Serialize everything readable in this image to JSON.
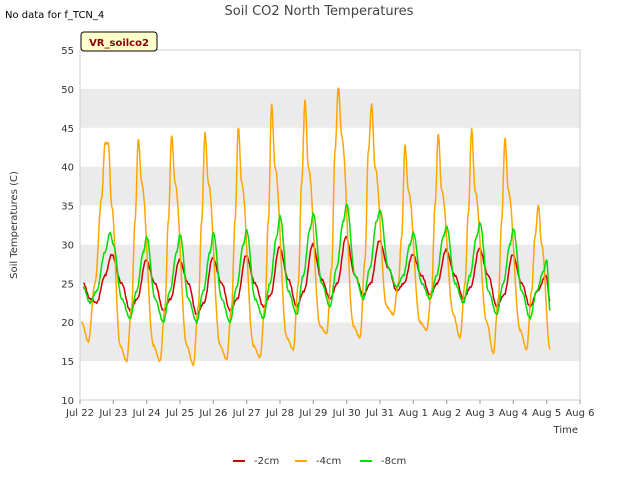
{
  "no_data_note": "No data for f_TCN_4",
  "badge": "VR_soilco2",
  "chart_data": {
    "type": "line",
    "title": "Soil CO2 North Temperatures",
    "xlabel": "Time",
    "ylabel": "Soil Temperatures (C)",
    "ylim": [
      10,
      55
    ],
    "yticks": [
      10,
      15,
      20,
      25,
      30,
      35,
      40,
      45,
      50,
      55
    ],
    "xlim": [
      0,
      15
    ],
    "xticks": [
      {
        "x": 0,
        "label": "Jul 22"
      },
      {
        "x": 1,
        "label": "Jul 23"
      },
      {
        "x": 2,
        "label": "Jul 24"
      },
      {
        "x": 3,
        "label": "Jul 25"
      },
      {
        "x": 4,
        "label": "Jul 26"
      },
      {
        "x": 5,
        "label": "Jul 27"
      },
      {
        "x": 6,
        "label": "Jul 28"
      },
      {
        "x": 7,
        "label": "Jul 29"
      },
      {
        "x": 8,
        "label": "Jul 30"
      },
      {
        "x": 9,
        "label": "Jul 31"
      },
      {
        "x": 10,
        "label": "Aug 1"
      },
      {
        "x": 11,
        "label": "Aug 2"
      },
      {
        "x": 12,
        "label": "Aug 3"
      },
      {
        "x": 13,
        "label": "Aug 4"
      },
      {
        "x": 14,
        "label": "Aug 5"
      },
      {
        "x": 15,
        "label": "Aug 6"
      }
    ],
    "grid": "horizontal bands",
    "legend_position": "bottom",
    "series": [
      {
        "name": "-2cm",
        "color": "#cc0000",
        "x": [
          0.1,
          0.3,
          0.5,
          0.75,
          0.95,
          1.25,
          1.5,
          1.72,
          1.98,
          2.25,
          2.5,
          2.72,
          2.98,
          3.25,
          3.5,
          3.72,
          3.98,
          4.25,
          4.5,
          4.72,
          4.98,
          5.25,
          5.5,
          5.72,
          5.98,
          6.25,
          6.5,
          6.72,
          6.98,
          7.25,
          7.5,
          7.72,
          7.98,
          8.25,
          8.5,
          8.72,
          8.98,
          9.25,
          9.5,
          9.72,
          9.98,
          10.25,
          10.5,
          10.72,
          10.98,
          11.25,
          11.5,
          11.72,
          11.98,
          12.25,
          12.5,
          12.72,
          12.98,
          13.25,
          13.5,
          13.72,
          13.98,
          14.1
        ],
        "y": [
          25,
          23,
          22.5,
          26,
          28.7,
          25,
          21.5,
          23,
          28,
          25,
          21.5,
          23,
          28,
          25,
          21,
          22.5,
          28.3,
          25,
          21.5,
          23,
          28.6,
          25,
          22,
          23.5,
          29.7,
          25.5,
          22,
          24,
          30,
          25.5,
          23,
          25,
          31,
          26,
          23.5,
          25,
          30.5,
          27,
          24,
          25,
          28.7,
          26,
          23.5,
          25,
          29.3,
          26,
          23,
          24.5,
          29.5,
          26,
          22,
          23.5,
          28.7,
          25,
          22,
          24,
          26,
          22.7
        ]
      },
      {
        "name": "-4cm",
        "color": "#ffa500",
        "x": [
          0.05,
          0.25,
          0.45,
          0.65,
          0.75,
          0.85,
          0.95,
          1.2,
          1.4,
          1.55,
          1.65,
          1.75,
          1.85,
          2.2,
          2.4,
          2.55,
          2.65,
          2.75,
          2.85,
          3.2,
          3.4,
          3.55,
          3.65,
          3.75,
          3.85,
          4.2,
          4.4,
          4.55,
          4.65,
          4.75,
          4.85,
          5.2,
          5.4,
          5.55,
          5.65,
          5.75,
          5.85,
          6.2,
          6.4,
          6.55,
          6.65,
          6.75,
          6.85,
          7.2,
          7.4,
          7.55,
          7.65,
          7.75,
          7.85,
          8.2,
          8.4,
          8.55,
          8.65,
          8.75,
          8.85,
          9.2,
          9.4,
          9.55,
          9.65,
          9.75,
          9.85,
          10.2,
          10.4,
          10.55,
          10.65,
          10.75,
          10.85,
          11.2,
          11.4,
          11.55,
          11.65,
          11.75,
          11.85,
          12.2,
          12.4,
          12.55,
          12.65,
          12.75,
          12.85,
          13.2,
          13.4,
          13.55,
          13.65,
          13.75,
          13.85,
          14.1
        ],
        "y": [
          20,
          17.5,
          25,
          36,
          43,
          43,
          35,
          17,
          15,
          22,
          33,
          43.5,
          38,
          17,
          15,
          22,
          33,
          44,
          38,
          17,
          14.5,
          22,
          33,
          44.3,
          38,
          17,
          15.2,
          22,
          33,
          45,
          38,
          17,
          15.5,
          22,
          33,
          48,
          40,
          18,
          16.5,
          25,
          38,
          48.5,
          40,
          19.5,
          18.5,
          27,
          42,
          50.2,
          44,
          19.5,
          18,
          28,
          42,
          48,
          40,
          22,
          21,
          25,
          31,
          42.8,
          37,
          20,
          19,
          24,
          35,
          44.2,
          37,
          21,
          18,
          25,
          34,
          44.8,
          37,
          20,
          16,
          23,
          33,
          43.7,
          37,
          19,
          16.5,
          24,
          31,
          35,
          30,
          16.5
        ]
      },
      {
        "name": "-8cm",
        "color": "#00dd00",
        "x": [
          0.1,
          0.3,
          0.5,
          0.75,
          0.9,
          1.0,
          1.25,
          1.5,
          1.7,
          1.9,
          2.0,
          2.25,
          2.5,
          2.7,
          2.9,
          3.0,
          3.25,
          3.5,
          3.7,
          3.9,
          4.0,
          4.25,
          4.5,
          4.7,
          4.9,
          5.0,
          5.25,
          5.5,
          5.7,
          5.9,
          6.0,
          6.25,
          6.5,
          6.7,
          6.9,
          7.0,
          7.25,
          7.5,
          7.7,
          7.9,
          8.0,
          8.25,
          8.5,
          8.7,
          8.9,
          9.0,
          9.25,
          9.5,
          9.7,
          9.9,
          10.0,
          10.25,
          10.5,
          10.7,
          10.9,
          11.0,
          11.25,
          11.5,
          11.7,
          11.9,
          12.0,
          12.25,
          12.5,
          12.7,
          12.9,
          13.0,
          13.25,
          13.5,
          13.7,
          13.9,
          14.0,
          14.1
        ],
        "y": [
          24.5,
          22.5,
          24,
          29,
          31.5,
          30,
          23,
          20.5,
          24,
          29,
          31,
          23,
          20,
          24,
          29,
          31.3,
          23,
          20,
          24,
          29,
          31.5,
          23,
          20,
          24.5,
          30,
          31.8,
          23,
          20.5,
          25,
          31,
          33.7,
          24,
          21,
          26,
          32,
          34,
          25,
          22,
          27,
          33,
          35.2,
          26,
          23,
          27,
          33,
          34.4,
          27,
          24.5,
          26,
          30,
          31.5,
          25,
          23,
          26,
          31,
          32.3,
          25,
          22.5,
          26,
          31,
          32.8,
          24,
          21,
          25,
          30,
          32,
          24,
          20.5,
          24,
          26.5,
          28,
          21.5
        ]
      }
    ]
  }
}
